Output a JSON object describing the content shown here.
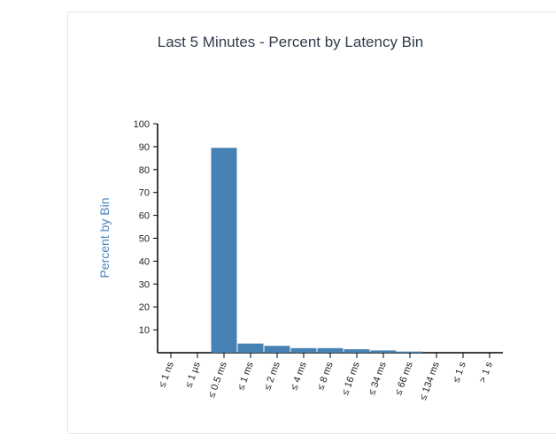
{
  "chart_data": {
    "type": "bar",
    "title": "Last 5 Minutes - Percent by Latency Bin",
    "xlabel": "",
    "ylabel": "Percent by Bin",
    "categories": [
      "≤ 1 ns",
      "≤ 1 µs",
      "≤ 0.5 ms",
      "≤ 1 ms",
      "≤ 2 ms",
      "≤ 4 ms",
      "≤ 8 ms",
      "≤ 16 ms",
      "≤ 34 ms",
      "≤ 66 ms",
      "≤ 134 ms",
      "≤ 1 s",
      "> 1 s"
    ],
    "values": [
      0,
      0,
      89.5,
      4,
      3,
      2,
      2,
      1.5,
      1,
      0.5,
      0,
      0,
      0
    ],
    "ylim": [
      0,
      100
    ],
    "yticks": [
      10,
      20,
      30,
      40,
      50,
      60,
      70,
      80,
      90,
      100
    ],
    "grid": false,
    "bar_color": "#4682b4"
  }
}
